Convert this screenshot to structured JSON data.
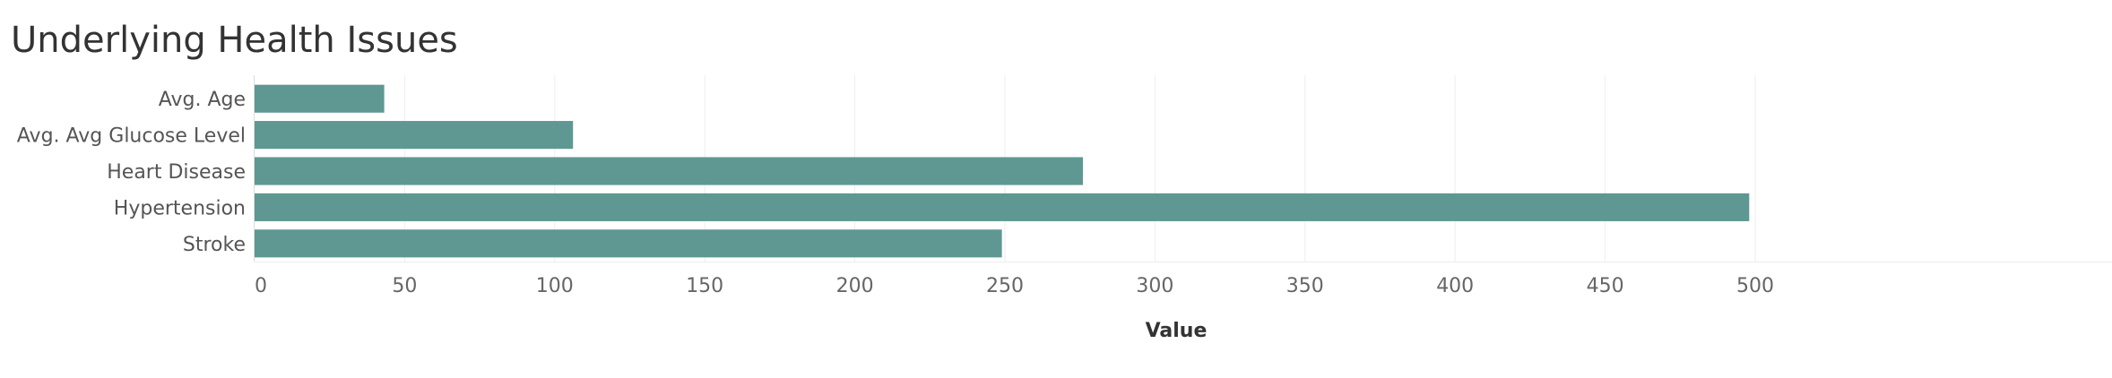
{
  "chart_data": {
    "type": "bar",
    "orientation": "horizontal",
    "title": "Underlying Health Issues",
    "xlabel": "Value",
    "ylabel": "",
    "categories": [
      "Avg. Age",
      "Avg. Avg Glucose Level",
      "Heart Disease",
      "Hypertension",
      "Stroke"
    ],
    "values": [
      43.2,
      106.1,
      276,
      498,
      249
    ],
    "xlim": [
      0,
      525
    ],
    "xticks": [
      0,
      50,
      100,
      150,
      200,
      250,
      300,
      350,
      400,
      450,
      500
    ],
    "grid": true,
    "legend": "none",
    "bar_color": "#5f9893",
    "grid_color": "#eeeeee",
    "axis_color": "#dddddd"
  }
}
